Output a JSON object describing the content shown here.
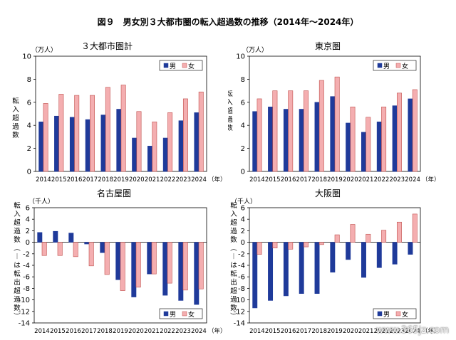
{
  "figure_title": "図９　男女別３大都市圏の転入超過数の推移（2014年～2024年）",
  "colors": {
    "male": "#1f3a9a",
    "female": "#f4aeb0",
    "female_border": "#c0504d"
  },
  "watermark": "www.365jz.com",
  "chart_data": [
    {
      "type": "bar",
      "title": "３大都市圏計",
      "unit": "（万人）",
      "ylabel": "転入超過数",
      "x_unit": "（年）",
      "ylim": [
        0,
        10
      ],
      "yticks": [
        0,
        2,
        4,
        6,
        8,
        10
      ],
      "categories": [
        "2014",
        "2015",
        "2016",
        "2017",
        "2018",
        "2019",
        "2020",
        "2021",
        "2022",
        "2023",
        "2024"
      ],
      "legend": "top-right",
      "series": [
        {
          "name": "男",
          "values": [
            4.3,
            4.8,
            4.7,
            4.5,
            4.9,
            5.4,
            2.9,
            2.2,
            2.9,
            4.4,
            5.1
          ]
        },
        {
          "name": "女",
          "values": [
            5.9,
            6.7,
            6.6,
            6.6,
            7.3,
            7.5,
            5.2,
            4.3,
            5.1,
            6.3,
            6.9
          ]
        }
      ]
    },
    {
      "type": "bar",
      "title": "東京圏",
      "unit": "（万人）",
      "ylabel": "転入超過数",
      "x_unit": "（年）",
      "ylim": [
        0,
        10
      ],
      "yticks": [
        0,
        2,
        4,
        6,
        8,
        10
      ],
      "categories": [
        "2014",
        "2015",
        "2016",
        "2017",
        "2018",
        "2019",
        "2020",
        "2021",
        "2022",
        "2023",
        "2024"
      ],
      "legend": "top-right",
      "series": [
        {
          "name": "男",
          "values": [
            5.2,
            5.6,
            5.4,
            5.4,
            6.0,
            6.5,
            4.2,
            3.4,
            4.3,
            5.7,
            6.3
          ]
        },
        {
          "name": "女",
          "values": [
            6.3,
            7.0,
            7.0,
            7.0,
            7.9,
            8.2,
            5.6,
            4.7,
            5.6,
            6.8,
            7.1
          ]
        }
      ]
    },
    {
      "type": "bar",
      "title": "名古屋圏",
      "unit": "（千人）",
      "ylabel": "転入超過数（－は転出超過数）",
      "x_unit": "（年）",
      "ylim": [
        -14,
        6
      ],
      "yticks": [
        -14,
        -12,
        -10,
        -8,
        -6,
        -4,
        -2,
        0,
        2,
        4,
        6
      ],
      "categories": [
        "2014",
        "2015",
        "2016",
        "2017",
        "2018",
        "2019",
        "2020",
        "2021",
        "2022",
        "2023",
        "2024"
      ],
      "legend": "bottom-right",
      "series": [
        {
          "name": "男",
          "values": [
            1.7,
            1.9,
            1.6,
            -0.3,
            -1.8,
            -6.5,
            -9.5,
            -5.5,
            -9.2,
            -10.1,
            -10.8
          ]
        },
        {
          "name": "女",
          "values": [
            -2.3,
            -2.3,
            -2.5,
            -4.1,
            -5.6,
            -8.4,
            -7.8,
            -5.5,
            -7.1,
            -8.3,
            -8.1
          ]
        }
      ]
    },
    {
      "type": "bar",
      "title": "大阪圏",
      "unit": "（千人）",
      "ylabel": "転入超過数（－は転出超過数）",
      "x_unit": "（年）",
      "ylim": [
        -14,
        6
      ],
      "yticks": [
        -14,
        -12,
        -10,
        -8,
        -6,
        -4,
        -2,
        0,
        2,
        4,
        6
      ],
      "categories": [
        "2014",
        "2015",
        "2016",
        "2017",
        "2018",
        "2019",
        "2020",
        "2021",
        "2022",
        "2023",
        "2024"
      ],
      "legend": "bottom-right",
      "series": [
        {
          "name": "男",
          "values": [
            -11.4,
            -10.1,
            -9.3,
            -8.9,
            -8.9,
            -5.2,
            -3.0,
            -6.1,
            -4.4,
            -3.8,
            -2.1
          ]
        },
        {
          "name": "女",
          "values": [
            -2.1,
            -1.0,
            -1.2,
            -0.8,
            -0.4,
            1.3,
            3.1,
            1.4,
            2.1,
            3.5,
            4.9
          ]
        }
      ]
    }
  ]
}
